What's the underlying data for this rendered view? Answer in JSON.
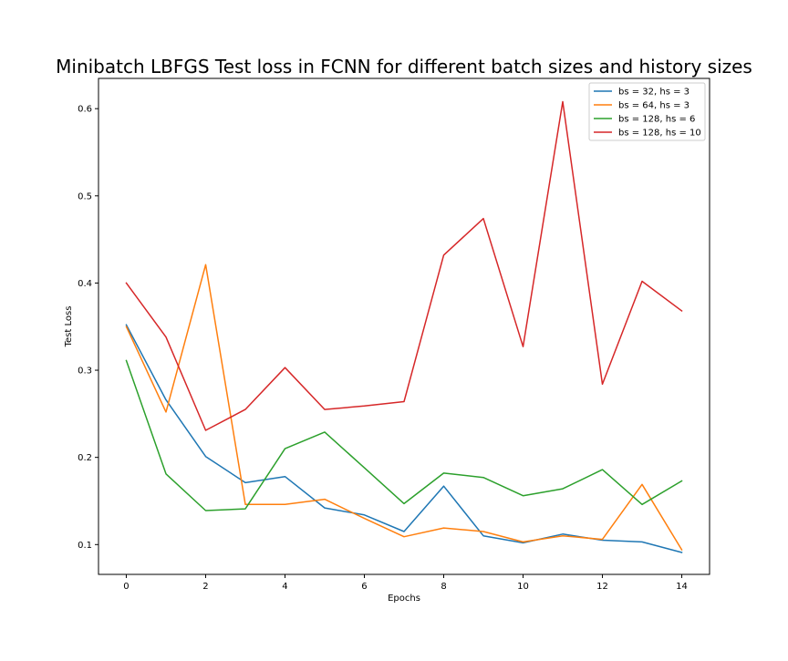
{
  "chart_data": {
    "type": "line",
    "title": "Minibatch LBFGS Test loss in FCNN for different batch sizes and history sizes",
    "xlabel": "Epochs",
    "ylabel": "Test Loss",
    "xlim": [
      -0.7,
      14.7
    ],
    "ylim": [
      0.0658,
      0.6347
    ],
    "x_ticks": [
      0,
      2,
      4,
      6,
      8,
      10,
      12,
      14
    ],
    "y_ticks": [
      0.1,
      0.2,
      0.3,
      0.4,
      0.5,
      0.6
    ],
    "x_tick_labels": [
      "0",
      "2",
      "4",
      "6",
      "8",
      "10",
      "12",
      "14"
    ],
    "y_tick_labels": [
      "0.1",
      "0.2",
      "0.3",
      "0.4",
      "0.5",
      "0.6"
    ],
    "grid": false,
    "legend_position": "top-right",
    "x": [
      0,
      1,
      2,
      3,
      4,
      5,
      6,
      7,
      8,
      9,
      10,
      11,
      12,
      13,
      14
    ],
    "series": [
      {
        "name": "bs = 32, hs = 3",
        "color": "#1f77b4",
        "values": [
          0.352,
          0.266,
          0.201,
          0.171,
          0.178,
          0.142,
          0.134,
          0.115,
          0.167,
          0.11,
          0.102,
          0.112,
          0.105,
          0.103,
          0.091
        ]
      },
      {
        "name": "bs = 64, hs = 3",
        "color": "#ff7f0e",
        "values": [
          0.35,
          0.252,
          0.421,
          0.146,
          0.146,
          0.152,
          0.13,
          0.109,
          0.119,
          0.115,
          0.103,
          0.11,
          0.106,
          0.169,
          0.094
        ]
      },
      {
        "name": "bs = 128, hs = 6",
        "color": "#2ca02c",
        "values": [
          0.311,
          0.181,
          0.139,
          0.141,
          0.21,
          0.229,
          0.188,
          0.147,
          0.182,
          0.177,
          0.156,
          0.164,
          0.186,
          0.146,
          0.173
        ]
      },
      {
        "name": "bs = 128, hs = 10",
        "color": "#d62728",
        "values": [
          0.4,
          0.338,
          0.231,
          0.255,
          0.303,
          0.255,
          0.259,
          0.264,
          0.432,
          0.474,
          0.327,
          0.608,
          0.284,
          0.402,
          0.368
        ]
      }
    ]
  }
}
